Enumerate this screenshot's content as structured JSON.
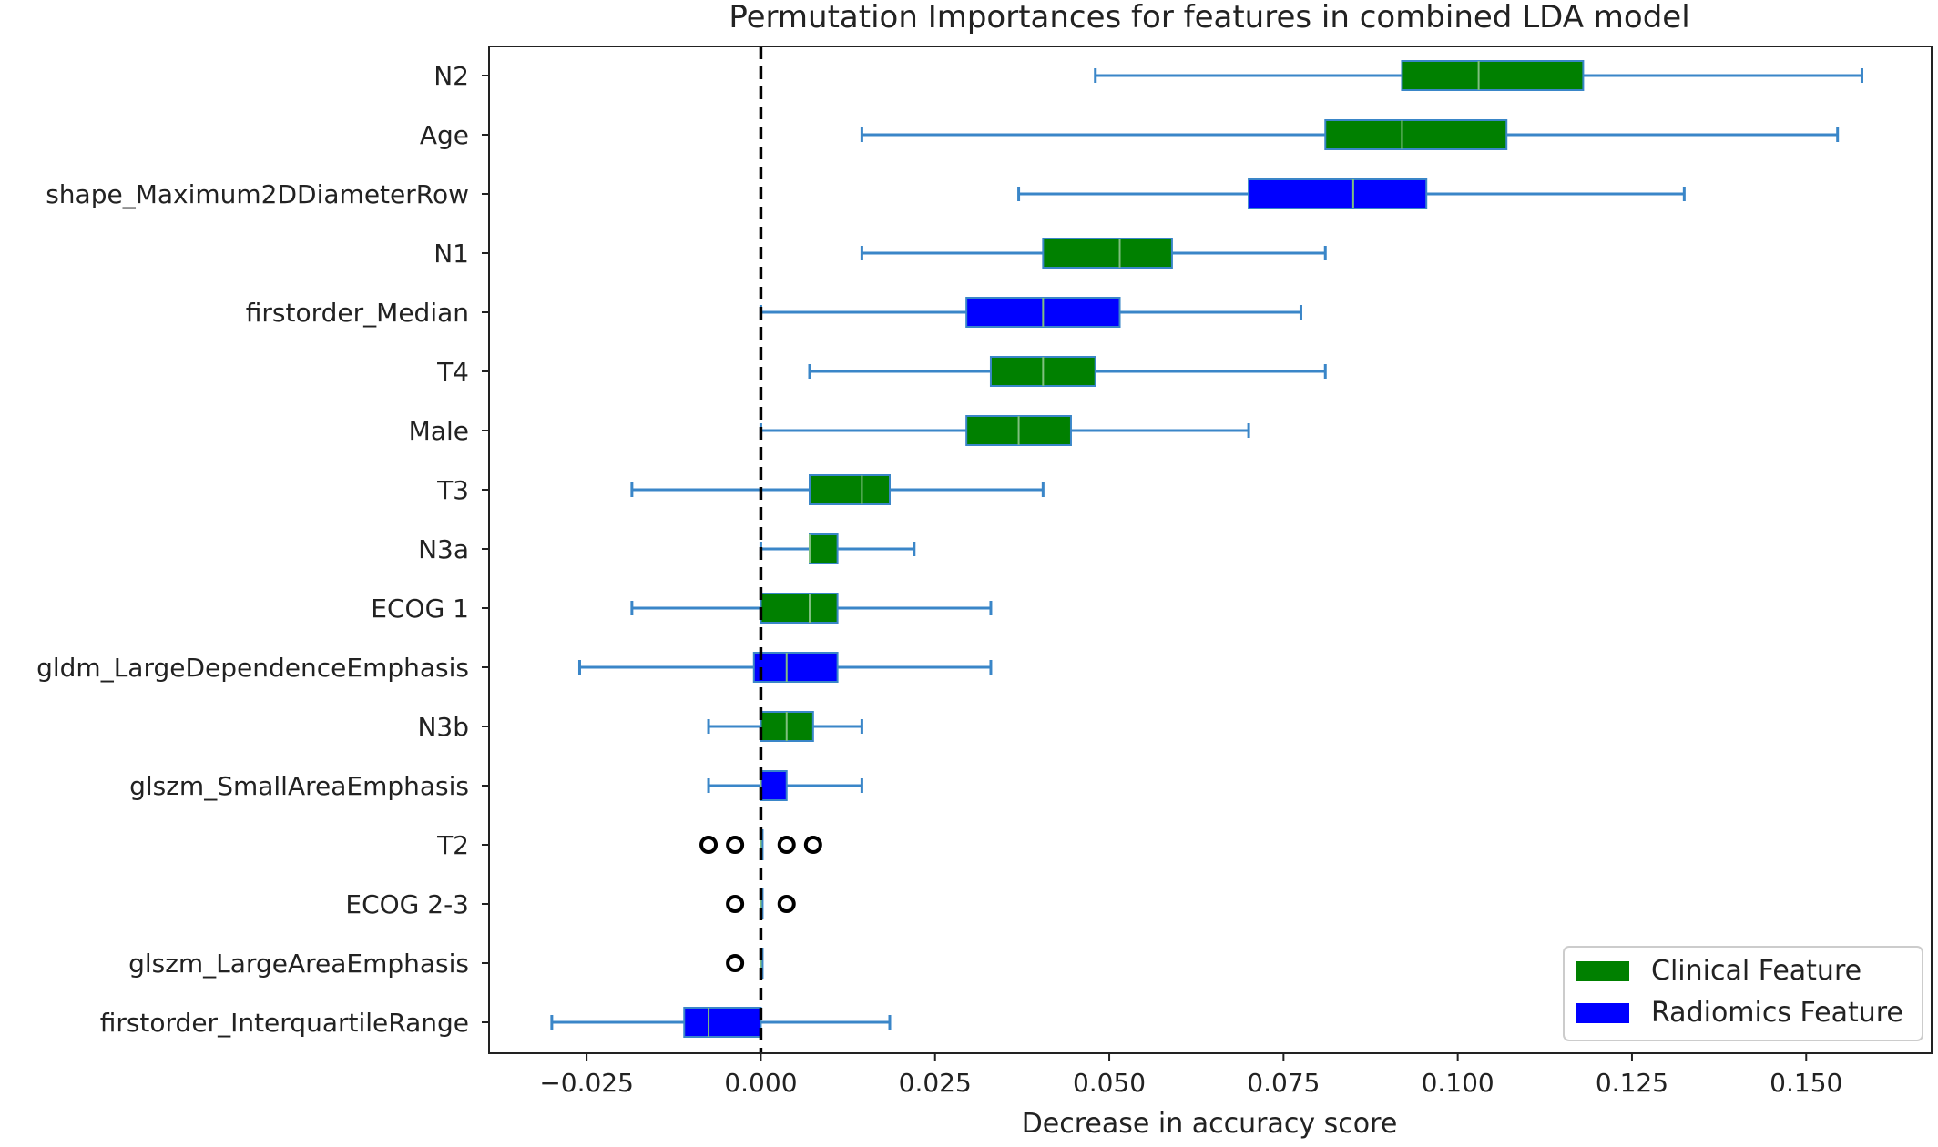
{
  "chart_data": {
    "type": "box",
    "orientation": "horizontal",
    "title": "Permutation Importances for features in combined LDA model",
    "xlabel": "Decrease in accuracy score",
    "ylabel": "",
    "xlim": [
      -0.039,
      0.168
    ],
    "xticks": [
      -0.025,
      0.0,
      0.025,
      0.05,
      0.075,
      0.1,
      0.125,
      0.15
    ],
    "xtick_labels": [
      "−0.025",
      "0.000",
      "0.025",
      "0.050",
      "0.075",
      "0.100",
      "0.125",
      "0.150"
    ],
    "reference_line": {
      "x": 0.0,
      "style": "dashed",
      "color": "#000000"
    },
    "grid": false,
    "legend": {
      "position": "bottom-right",
      "entries": [
        {
          "label": "Clinical Feature",
          "color": "#008000"
        },
        {
          "label": "Radiomics Feature",
          "color": "#0000ff"
        }
      ]
    },
    "whisker_color": "#3a86c8",
    "median_color": "#7fbf7f",
    "outlier_color": "#000000",
    "boxes": [
      {
        "label": "N2",
        "group": "Clinical Feature",
        "whisker_low": 0.048,
        "q1": 0.092,
        "median": 0.103,
        "q3": 0.118,
        "whisker_high": 0.158,
        "outliers": []
      },
      {
        "label": "Age",
        "group": "Clinical Feature",
        "whisker_low": 0.0145,
        "q1": 0.081,
        "median": 0.092,
        "q3": 0.107,
        "whisker_high": 0.1545,
        "outliers": []
      },
      {
        "label": "shape_Maximum2DDiameterRow",
        "group": "Radiomics Feature",
        "whisker_low": 0.037,
        "q1": 0.07,
        "median": 0.085,
        "q3": 0.0955,
        "whisker_high": 0.1325,
        "outliers": []
      },
      {
        "label": "N1",
        "group": "Clinical Feature",
        "whisker_low": 0.0145,
        "q1": 0.0405,
        "median": 0.0515,
        "q3": 0.059,
        "whisker_high": 0.081,
        "outliers": []
      },
      {
        "label": "firstorder_Median",
        "group": "Radiomics Feature",
        "whisker_low": 0.0,
        "q1": 0.0295,
        "median": 0.0405,
        "q3": 0.0515,
        "whisker_high": 0.0775,
        "outliers": []
      },
      {
        "label": "T4",
        "group": "Clinical Feature",
        "whisker_low": 0.007,
        "q1": 0.033,
        "median": 0.0405,
        "q3": 0.048,
        "whisker_high": 0.081,
        "outliers": []
      },
      {
        "label": "Male",
        "group": "Clinical Feature",
        "whisker_low": 0.0,
        "q1": 0.0295,
        "median": 0.037,
        "q3": 0.0445,
        "whisker_high": 0.07,
        "outliers": []
      },
      {
        "label": "T3",
        "group": "Clinical Feature",
        "whisker_low": -0.0185,
        "q1": 0.007,
        "median": 0.0145,
        "q3": 0.0185,
        "whisker_high": 0.0405,
        "outliers": []
      },
      {
        "label": "N3a",
        "group": "Clinical Feature",
        "whisker_low": 0.0,
        "q1": 0.007,
        "median": 0.007,
        "q3": 0.011,
        "whisker_high": 0.022,
        "outliers": []
      },
      {
        "label": "ECOG 1",
        "group": "Clinical Feature",
        "whisker_low": -0.0185,
        "q1": 0.0,
        "median": 0.007,
        "q3": 0.011,
        "whisker_high": 0.033,
        "outliers": []
      },
      {
        "label": "gldm_LargeDependenceEmphasis",
        "group": "Radiomics Feature",
        "whisker_low": -0.026,
        "q1": -0.001,
        "median": 0.0037,
        "q3": 0.011,
        "whisker_high": 0.033,
        "outliers": []
      },
      {
        "label": "N3b",
        "group": "Clinical Feature",
        "whisker_low": -0.0075,
        "q1": 0.0,
        "median": 0.0037,
        "q3": 0.0075,
        "whisker_high": 0.0145,
        "outliers": []
      },
      {
        "label": "glszm_SmallAreaEmphasis",
        "group": "Radiomics Feature",
        "whisker_low": -0.0075,
        "q1": 0.0,
        "median": 0.0,
        "q3": 0.0037,
        "whisker_high": 0.0145,
        "outliers": []
      },
      {
        "label": "T2",
        "group": "Clinical Feature",
        "whisker_low": 0.0,
        "q1": 0.0,
        "median": 0.0,
        "q3": 0.0,
        "whisker_high": 0.0,
        "outliers": [
          -0.0075,
          -0.0037,
          0.0037,
          0.0075
        ]
      },
      {
        "label": "ECOG 2-3",
        "group": "Clinical Feature",
        "whisker_low": 0.0,
        "q1": 0.0,
        "median": 0.0,
        "q3": 0.0,
        "whisker_high": 0.0,
        "outliers": [
          -0.0037,
          0.0037
        ]
      },
      {
        "label": "glszm_LargeAreaEmphasis",
        "group": "Radiomics Feature",
        "whisker_low": 0.0,
        "q1": 0.0,
        "median": 0.0,
        "q3": 0.0,
        "whisker_high": 0.0,
        "outliers": [
          -0.0037
        ]
      },
      {
        "label": "firstorder_InterquartileRange",
        "group": "Radiomics Feature",
        "whisker_low": -0.03,
        "q1": -0.011,
        "median": -0.0075,
        "q3": 0.0,
        "whisker_high": 0.0185,
        "outliers": []
      }
    ]
  }
}
